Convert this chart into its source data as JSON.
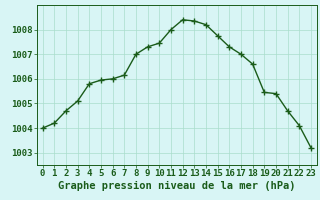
{
  "hours": [
    0,
    1,
    2,
    3,
    4,
    5,
    6,
    7,
    8,
    9,
    10,
    11,
    12,
    13,
    14,
    15,
    16,
    17,
    18,
    19,
    20,
    21,
    22,
    23
  ],
  "pressure": [
    1004.0,
    1004.2,
    1004.7,
    1005.1,
    1005.8,
    1005.95,
    1006.0,
    1006.15,
    1007.0,
    1007.3,
    1007.45,
    1008.0,
    1008.4,
    1008.35,
    1008.2,
    1007.75,
    1007.3,
    1007.0,
    1006.6,
    1005.45,
    1005.4,
    1004.7,
    1004.1,
    1003.2
  ],
  "line_color": "#1a5c1a",
  "marker": "+",
  "marker_size": 4,
  "marker_linewidth": 1.0,
  "line_width": 1.0,
  "background_color": "#d8f5f5",
  "grid_color": "#aaddcc",
  "ylabel_ticks": [
    1003,
    1004,
    1005,
    1006,
    1007,
    1008
  ],
  "xlabel": "Graphe pression niveau de la mer (hPa)",
  "xlim": [
    -0.5,
    23.5
  ],
  "ylim": [
    1002.5,
    1009.0
  ],
  "xlabel_fontsize": 7.5,
  "tick_fontsize": 6.5
}
